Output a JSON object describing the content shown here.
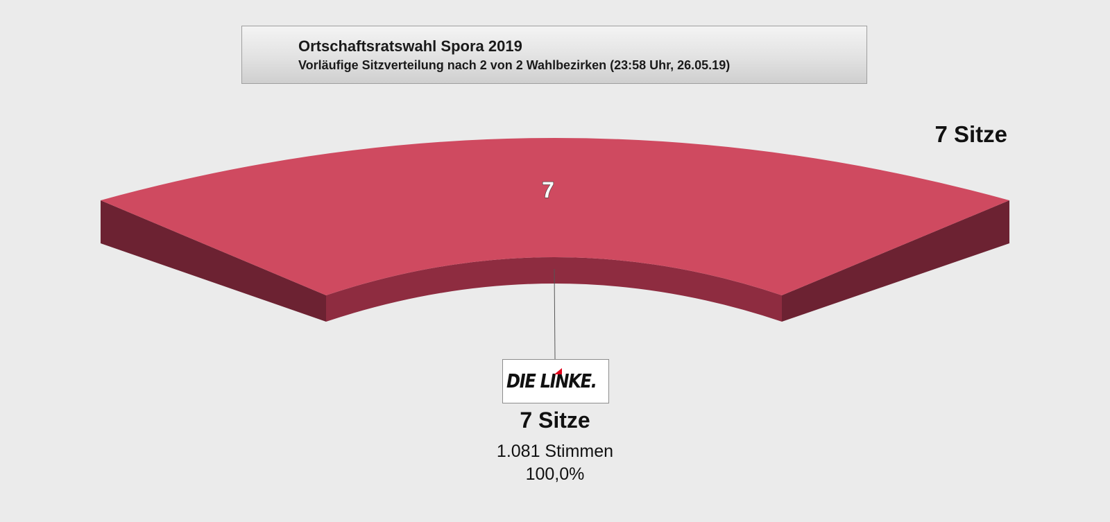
{
  "header": {
    "title": "Ortschaftsratswahl Spora 2019",
    "subtitle": "Vorläufige Sitzverteilung nach 2 von 2 Wahlbezirken (23:58 Uhr, 26.05.19)"
  },
  "total_seats_label": "7 Sitze",
  "chart_data": {
    "type": "pie",
    "total_seats": 7,
    "series": [
      {
        "name": "DIE LINKE.",
        "seats": 7,
        "seat_label": "7",
        "seats_text": "7 Sitze",
        "votes_text": "1.081 Stimmen",
        "percent_text": "100,0%",
        "percent": 100.0,
        "color": "#cf4a60"
      }
    ]
  },
  "colors": {
    "background": "#ebebeb",
    "linke_top": "#cf4a60",
    "linke_inner": "#8e2c40",
    "linke_side": "#6c2232",
    "logo_red": "#e2001a"
  }
}
